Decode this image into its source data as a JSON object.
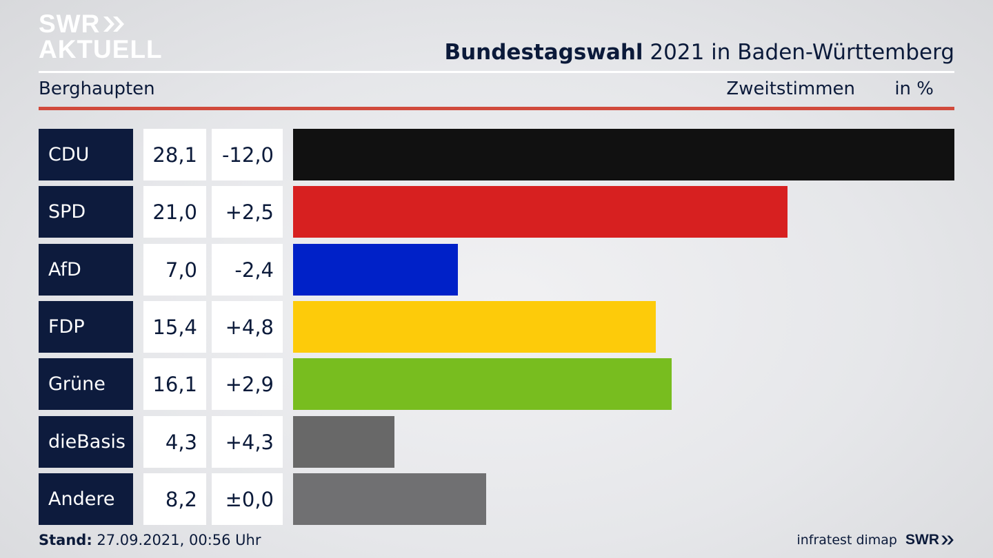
{
  "brand": {
    "line1": "SWR",
    "line2": "AKTUELL",
    "footer_logo": "SWR"
  },
  "header": {
    "title_bold": "Bundestagswahl",
    "title_rest": " 2021 in Baden-Württemberg",
    "region": "Berghaupten",
    "measure": "Zweitstimmen",
    "unit": "in %"
  },
  "footer": {
    "stand_label": "Stand:",
    "stand_value": " 27.09.2021, 00:56 Uhr",
    "source": "infratest dimap"
  },
  "chart_data": {
    "type": "bar",
    "orientation": "horizontal",
    "categories": [
      "CDU",
      "SPD",
      "AfD",
      "FDP",
      "Grüne",
      "dieBasis",
      "Andere"
    ],
    "series": [
      {
        "name": "Zweitstimmen",
        "values": [
          28.1,
          21.0,
          7.0,
          15.4,
          16.1,
          4.3,
          8.2
        ],
        "labels": [
          "28,1",
          "21,0",
          "7,0",
          "15,4",
          "16,1",
          "4,3",
          "8,2"
        ]
      },
      {
        "values": [
          -12.0,
          2.5,
          -2.4,
          4.8,
          2.9,
          4.3,
          0.0
        ],
        "labels": [
          "-12,0",
          "+2,5",
          "-2,4",
          "+4,8",
          "+2,9",
          "+4,3",
          "±0,0"
        ]
      }
    ],
    "colors": [
      "#111111",
      "#d72020",
      "#0021c8",
      "#fdcb0a",
      "#78bd1f",
      "#686868",
      "#707072"
    ],
    "grid": false,
    "legend": "none"
  }
}
